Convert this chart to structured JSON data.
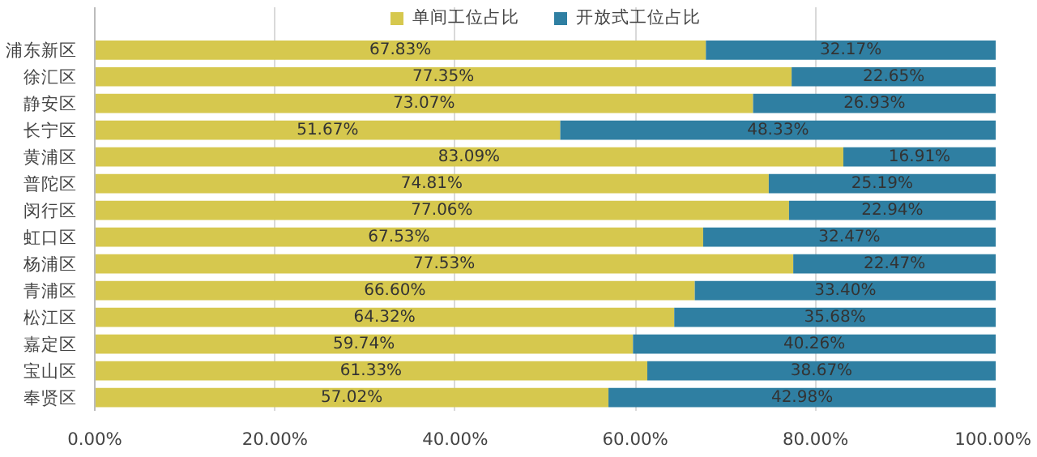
{
  "chart_data": {
    "type": "bar",
    "orientation": "horizontal",
    "stacked": true,
    "categories": [
      "浦东新区",
      "徐汇区",
      "静安区",
      "长宁区",
      "黄浦区",
      "普陀区",
      "闵行区",
      "虹口区",
      "杨浦区",
      "青浦区",
      "松江区",
      "嘉定区",
      "宝山区",
      "奉贤区"
    ],
    "series": [
      {
        "name": "单间工位占比",
        "color": "#d6c84e",
        "values": [
          67.83,
          77.35,
          73.07,
          51.67,
          83.09,
          74.81,
          77.06,
          67.53,
          77.53,
          66.6,
          64.32,
          59.74,
          61.33,
          57.02
        ],
        "value_labels": [
          "67.83%",
          "77.35%",
          "73.07%",
          "51.67%",
          "83.09%",
          "74.81%",
          "77.06%",
          "67.53%",
          "77.53%",
          "66.60%",
          "64.32%",
          "59.74%",
          "61.33%",
          "57.02%"
        ]
      },
      {
        "name": "开放式工位占比",
        "color": "#2f7fa2",
        "values": [
          32.17,
          22.65,
          26.93,
          48.33,
          16.91,
          25.19,
          22.94,
          32.47,
          22.47,
          33.4,
          35.68,
          40.26,
          38.67,
          42.98
        ],
        "value_labels": [
          "32.17%",
          "22.65%",
          "26.93%",
          "48.33%",
          "16.91%",
          "25.19%",
          "22.94%",
          "32.47%",
          "22.47%",
          "33.40%",
          "35.68%",
          "40.26%",
          "38.67%",
          "42.98%"
        ]
      }
    ],
    "xlim": [
      0,
      100
    ],
    "xticks": [
      {
        "value": 0,
        "label": "0.00%"
      },
      {
        "value": 20,
        "label": "20.00%"
      },
      {
        "value": 40,
        "label": "40.00%"
      },
      {
        "value": 60,
        "label": "60.00%"
      },
      {
        "value": 80,
        "label": "80.00%"
      },
      {
        "value": 100,
        "label": "100.00%"
      }
    ],
    "grid": "x",
    "legend": "top"
  }
}
